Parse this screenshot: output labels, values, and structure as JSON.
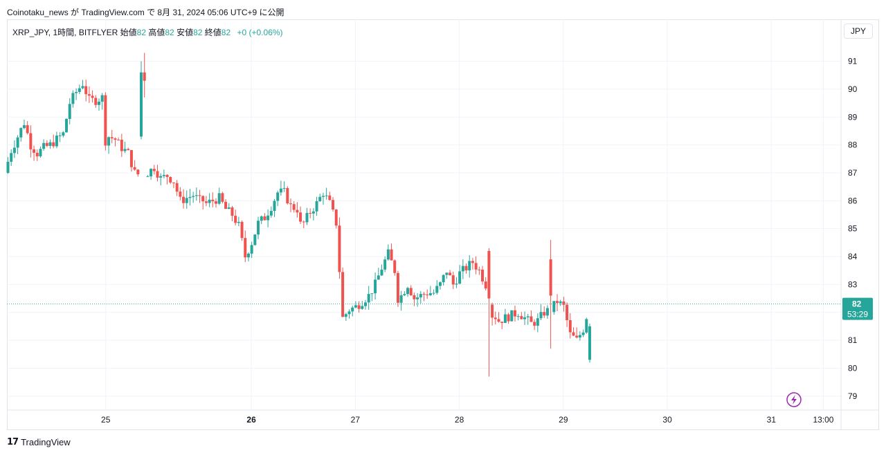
{
  "header": {
    "published_line": "Coinotaku_news が TradingView.com で 8月 31, 2024 05:06 UTC+9 に公開"
  },
  "legend": {
    "symbol": "XRP_JPY, 1時間, BITFLYER",
    "open_label": "始値",
    "open_value": "82",
    "high_label": "高値",
    "high_value": "82",
    "low_label": "安値",
    "low_value": "82",
    "close_label": "終値",
    "close_value": "82",
    "change": "+0 (+0.06%)"
  },
  "currency_button": "JPY",
  "price_tag": {
    "price": "82",
    "countdown": "53:29"
  },
  "brand": {
    "logo_mark": "17",
    "name": "TradingView"
  },
  "icons": {
    "flash": "lightning-icon",
    "logo": "tradingview-logo-icon"
  },
  "colors": {
    "up": "#26a69a",
    "down": "#ef5350",
    "grid": "#f0f3fa",
    "axis_text": "#131722",
    "alert": "#9c27b0"
  },
  "chart_data": {
    "type": "candlestick",
    "interval": "1h",
    "ylim": [
      78.5,
      92.5
    ],
    "y_ticks": [
      79,
      80,
      81,
      82,
      83,
      84,
      85,
      86,
      87,
      88,
      89,
      90,
      91
    ],
    "x_labels": [
      {
        "label": "25",
        "x": 24.6,
        "bold": false
      },
      {
        "label": "26",
        "x": 26,
        "bold": true
      },
      {
        "label": "27",
        "x": 27,
        "bold": false
      },
      {
        "label": "28",
        "x": 28,
        "bold": false
      },
      {
        "label": "29",
        "x": 29,
        "bold": false
      },
      {
        "label": "30",
        "x": 30,
        "bold": false
      },
      {
        "label": "31",
        "x": 31,
        "bold": false
      },
      {
        "label": "13:00",
        "x": 31.5,
        "bold": false
      }
    ],
    "xlim": [
      23.65,
      31.67
    ],
    "current_price": 82.3,
    "anchors": [
      [
        87.0,
        87.8,
        88.3,
        88.8,
        88.0,
        87.7,
        87.9,
        88.0,
        88.2,
        88.4,
        89.5,
        89.9,
        90.2,
        89.6,
        89.6,
        89.7
      ],
      [
        88.0,
        88.3,
        88.2,
        87.9,
        87.7,
        87.0,
        86.9,
        87.0,
        87.2,
        86.8,
        86.9,
        86.7,
        86.0,
        86.1,
        86.2,
        86.0
      ],
      [
        86.1,
        85.9,
        86.0,
        86.1,
        85.7,
        85.5,
        85.1,
        84.0,
        84.5,
        85.2,
        85.4,
        85.8,
        86.3,
        86.3,
        85.8,
        85.7
      ],
      [
        85.1,
        85.2,
        85.6,
        85.9,
        86.3,
        85.9,
        85.2,
        81.8,
        82.1,
        82.2,
        82.4,
        82.6,
        83.0,
        83.6,
        84.1,
        83.5
      ],
      [
        82.4,
        82.6,
        83.0,
        82.5,
        82.6,
        82.7,
        82.7,
        83.0,
        83.5,
        83.0,
        83.4,
        83.6,
        83.8,
        83.5,
        83.0,
        81.9
      ],
      [
        82.0,
        81.7,
        81.8,
        81.9,
        82.0,
        81.8,
        81.6,
        81.7,
        82.0,
        82.1,
        82.4,
        82.2,
        81.2,
        81.0,
        81.4,
        82.3
      ]
    ],
    "highlight_candles": [
      {
        "x": 24.93,
        "open": 88.3,
        "high": 91.0,
        "low": 88.2,
        "close": 90.6
      },
      {
        "x": 24.98,
        "open": 90.6,
        "high": 91.3,
        "low": 89.7,
        "close": 90.3
      },
      {
        "x": 28.28,
        "open": 84.2,
        "high": 84.3,
        "low": 79.7,
        "close": 82.5
      },
      {
        "x": 28.88,
        "open": 83.9,
        "high": 84.6,
        "low": 80.7,
        "close": 82.6
      },
      {
        "x": 31.0,
        "open": 81.0,
        "high": 81.5,
        "low": 80.1,
        "close": 80.2
      },
      {
        "x": 31.05,
        "open": 80.3,
        "high": 81.6,
        "low": 80.2,
        "close": 81.5
      }
    ]
  }
}
